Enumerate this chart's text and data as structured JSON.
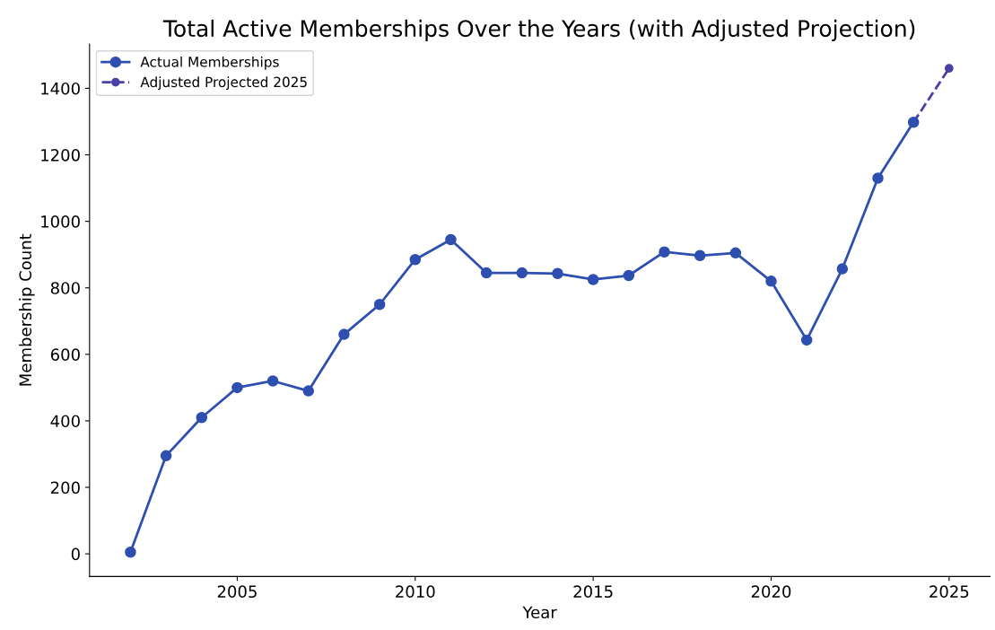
{
  "chart_data": {
    "type": "line",
    "title": "Total Active Memberships Over the Years (with Adjusted Projection)",
    "xlabel": "Year",
    "ylabel": "Membership Count",
    "series": [
      {
        "name": "Actual Memberships",
        "color": "#2f4fb0",
        "line_style": "solid",
        "x": [
          2002,
          2003,
          2004,
          2005,
          2006,
          2007,
          2008,
          2009,
          2010,
          2011,
          2012,
          2013,
          2014,
          2015,
          2016,
          2017,
          2018,
          2019,
          2020,
          2021,
          2022,
          2023,
          2024
        ],
        "values": [
          5,
          295,
          410,
          500,
          520,
          490,
          660,
          750,
          885,
          945,
          845,
          845,
          843,
          825,
          837,
          908,
          897,
          905,
          820,
          643,
          857,
          1130,
          1298
        ]
      },
      {
        "name": "Adjusted Projected 2025",
        "color": "#4a3fa8",
        "line_style": "dashed",
        "x": [
          2024,
          2025
        ],
        "values": [
          1298,
          1460
        ]
      }
    ],
    "marker": "circle",
    "xlim": [
      2000.85,
      2026.15
    ],
    "xticks": [
      2005,
      2010,
      2015,
      2020,
      2025
    ],
    "ylim": [
      -68,
      1533
    ],
    "yticks": [
      0,
      200,
      400,
      600,
      800,
      1000,
      1200,
      1400
    ],
    "grid": false,
    "legend": "top left"
  }
}
